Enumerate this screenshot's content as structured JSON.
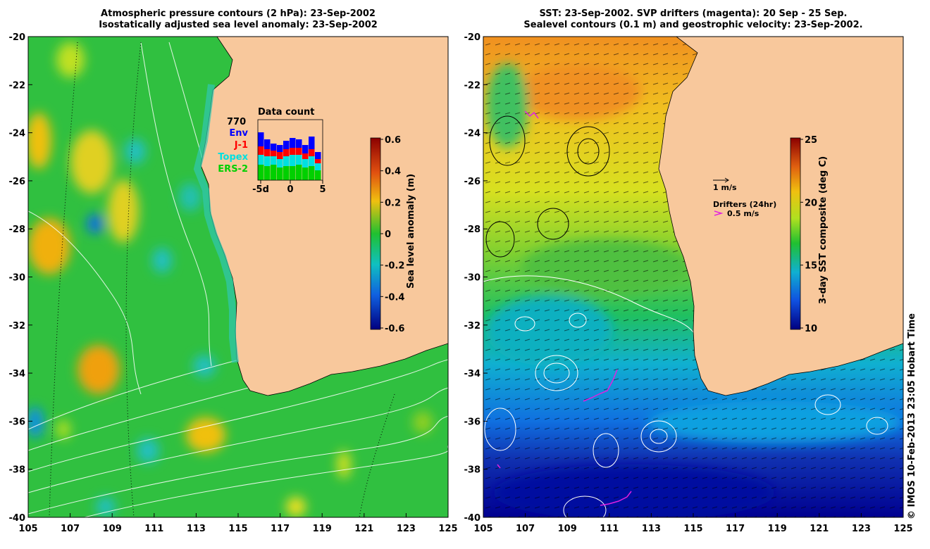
{
  "left_panel": {
    "title_line1": "Atmospheric pressure contours (2 hPa): 23-Sep-2002",
    "title_line2": "Isostatically adjusted sea level anomaly: 23-Sep-2002",
    "x_ticks": [
      "105",
      "107",
      "109",
      "111",
      "113",
      "115",
      "117",
      "119",
      "121",
      "123",
      "125"
    ],
    "y_ticks": [
      "-20",
      "-22",
      "-24",
      "-26",
      "-28",
      "-30",
      "-32",
      "-34",
      "-36",
      "-38",
      "-40"
    ],
    "colorbar": {
      "label": "Sea level anomaly (m)",
      "ticks": [
        "0.6",
        "0.4",
        "0.2",
        "0",
        "-0.2",
        "-0.4",
        "-0.6"
      ]
    },
    "inset": {
      "title": "Data count",
      "max_label": "770",
      "x_tick_labels": [
        "-5d",
        "0",
        "5"
      ],
      "legend": [
        {
          "label": "Env",
          "color": "#0000ff"
        },
        {
          "label": "J-1",
          "color": "#ff0000"
        },
        {
          "label": "Topex",
          "color": "#00e0e0"
        },
        {
          "label": "ERS-2",
          "color": "#00d000"
        }
      ]
    }
  },
  "right_panel": {
    "title_line1": "SST: 23-Sep-2002. SVP drifters (magenta): 20 Sep - 25 Sep.",
    "title_line2": "Sealevel contours (0.1 m) and geostrophic velocity: 23-Sep-2002.",
    "x_ticks": [
      "105",
      "107",
      "109",
      "111",
      "113",
      "115",
      "117",
      "119",
      "121",
      "123",
      "125"
    ],
    "y_ticks": [
      "-20",
      "-22",
      "-24",
      "-26",
      "-28",
      "-30",
      "-32",
      "-34",
      "-36",
      "-38",
      "-40"
    ],
    "colorbar": {
      "label": "3-day SST composite (deg C)",
      "ticks": [
        "25",
        "20",
        "15",
        "10"
      ]
    },
    "scale_label": "1 m/s",
    "drifters_label": "Drifters (24hr)",
    "drifter_scale_label": "0.5 m/s"
  },
  "credit": "© IMOS 10-Feb-2013 23:05 Hobart Time",
  "colors": {
    "land": "#f8c89c",
    "drifter": "#e020e0"
  }
}
